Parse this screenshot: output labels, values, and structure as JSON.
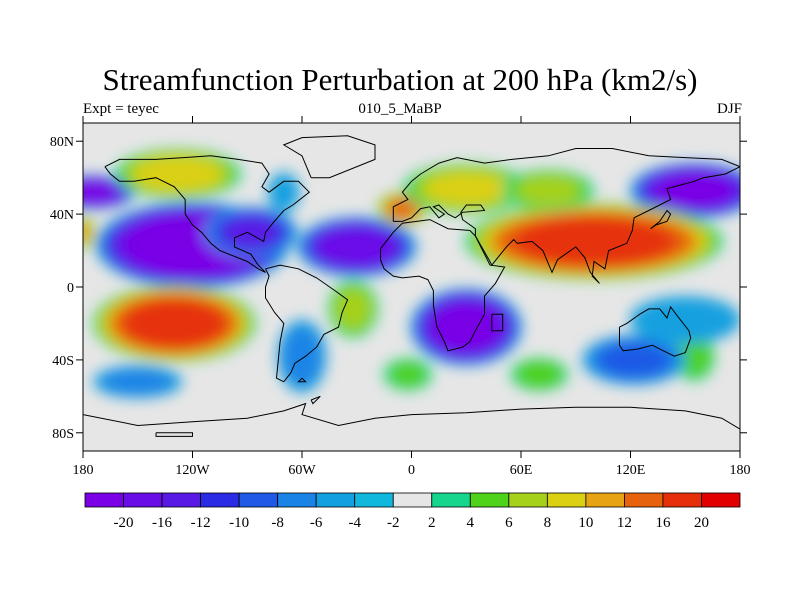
{
  "title": "Streamfunction Perturbation at 200 hPa (km2/s)",
  "subtitle_left": "Expt = teyec",
  "subtitle_center": "010_5_MaBP",
  "subtitle_right": "DJF",
  "lat_ticks": [
    {
      "label": "80N",
      "lat": 80
    },
    {
      "label": "40N",
      "lat": 40
    },
    {
      "label": "0",
      "lat": 0
    },
    {
      "label": "40S",
      "lat": -40
    },
    {
      "label": "80S",
      "lat": -80
    }
  ],
  "lon_ticks": [
    {
      "label": "180",
      "lon": -180
    },
    {
      "label": "120W",
      "lon": -120
    },
    {
      "label": "60W",
      "lon": -60
    },
    {
      "label": "0",
      "lon": 0
    },
    {
      "label": "60E",
      "lon": 60
    },
    {
      "label": "120E",
      "lon": 120
    },
    {
      "label": "180",
      "lon": 180
    }
  ],
  "colorbar": {
    "colors": [
      "#7a00e6",
      "#6a0ee8",
      "#5a1ae6",
      "#2b2be6",
      "#1e5ae6",
      "#1a84e6",
      "#13a0e0",
      "#11b8dd",
      "#e6e6e6",
      "#15d68c",
      "#4ed21a",
      "#a6d11a",
      "#dbd012",
      "#e6a414",
      "#e6620c",
      "#e6300a",
      "#e30000"
    ],
    "labels": [
      "-20",
      "-16",
      "-12",
      "-10",
      "-8",
      "-6",
      "-4",
      "-2",
      "2",
      "4",
      "6",
      "8",
      "10",
      "12",
      "16",
      "20"
    ]
  },
  "map_data": {
    "lon_range": [
      -180,
      180
    ],
    "lat_range": [
      -90,
      90
    ],
    "field_units": "km2/s",
    "features": [
      {
        "lon": -175,
        "lat": 52,
        "value": -16,
        "rx": 20,
        "ry": 8
      },
      {
        "lon": -120,
        "lat": 23,
        "value": -20,
        "rx": 45,
        "ry": 20
      },
      {
        "lon": -88,
        "lat": 30,
        "value": -10,
        "rx": 22,
        "ry": 12
      },
      {
        "lon": -30,
        "lat": 22,
        "value": -14,
        "rx": 28,
        "ry": 14
      },
      {
        "lon": 30,
        "lat": -22,
        "value": -16,
        "rx": 26,
        "ry": 18
      },
      {
        "lon": 155,
        "lat": 53,
        "value": -16,
        "rx": 30,
        "ry": 13
      },
      {
        "lon": -128,
        "lat": 62,
        "value": 9,
        "rx": 30,
        "ry": 12
      },
      {
        "lon": -180,
        "lat": 30,
        "value": 10,
        "rx": 6,
        "ry": 8
      },
      {
        "lon": -130,
        "lat": -20,
        "value": 18,
        "rx": 38,
        "ry": 18
      },
      {
        "lon": -32,
        "lat": -12,
        "value": 6,
        "rx": 12,
        "ry": 14
      },
      {
        "lon": -5,
        "lat": 43,
        "value": 12,
        "rx": 12,
        "ry": 8
      },
      {
        "lon": 30,
        "lat": 54,
        "value": 8,
        "rx": 30,
        "ry": 12
      },
      {
        "lon": 100,
        "lat": 25,
        "value": 18,
        "rx": 60,
        "ry": 18
      },
      {
        "lon": 75,
        "lat": 53,
        "value": 6,
        "rx": 22,
        "ry": 10
      },
      {
        "lon": 70,
        "lat": -48,
        "value": 5,
        "rx": 14,
        "ry": 8
      },
      {
        "lon": -2,
        "lat": -48,
        "value": 4,
        "rx": 12,
        "ry": 8
      },
      {
        "lon": 155,
        "lat": -38,
        "value": 5,
        "rx": 10,
        "ry": 12
      },
      {
        "lon": -60,
        "lat": -38,
        "value": -4,
        "rx": 12,
        "ry": 18
      },
      {
        "lon": -150,
        "lat": -52,
        "value": -4,
        "rx": 22,
        "ry": 8
      },
      {
        "lon": 122,
        "lat": -40,
        "value": -6,
        "rx": 25,
        "ry": 12
      },
      {
        "lon": -70,
        "lat": 52,
        "value": -3,
        "rx": 8,
        "ry": 10
      },
      {
        "lon": 150,
        "lat": -18,
        "value": -3,
        "rx": 28,
        "ry": 12
      }
    ],
    "coastlines": [
      [
        [
          -168,
          66
        ],
        [
          -160,
          70
        ],
        [
          -140,
          70
        ],
        [
          -125,
          71
        ],
        [
          -110,
          72
        ],
        [
          -95,
          70
        ],
        [
          -82,
          68
        ],
        [
          -78,
          62
        ],
        [
          -82,
          55
        ],
        [
          -78,
          52
        ],
        [
          -70,
          58
        ],
        [
          -62,
          58
        ],
        [
          -56,
          52
        ],
        [
          -65,
          45
        ],
        [
          -70,
          42
        ],
        [
          -76,
          35
        ],
        [
          -80,
          30
        ],
        [
          -81,
          25
        ],
        [
          -90,
          30
        ],
        [
          -97,
          27
        ],
        [
          -97,
          22
        ],
        [
          -88,
          18
        ],
        [
          -84,
          12
        ],
        [
          -80,
          8
        ],
        [
          -84,
          10
        ],
        [
          -90,
          14
        ],
        [
          -105,
          20
        ],
        [
          -110,
          24
        ],
        [
          -115,
          30
        ],
        [
          -120,
          34
        ],
        [
          -124,
          40
        ],
        [
          -124,
          48
        ],
        [
          -130,
          55
        ],
        [
          -140,
          60
        ],
        [
          -152,
          58
        ],
        [
          -160,
          58
        ],
        [
          -165,
          62
        ],
        [
          -168,
          66
        ]
      ],
      [
        [
          -80,
          10
        ],
        [
          -72,
          12
        ],
        [
          -62,
          10
        ],
        [
          -52,
          5
        ],
        [
          -42,
          -2
        ],
        [
          -35,
          -7
        ],
        [
          -38,
          -14
        ],
        [
          -40,
          -22
        ],
        [
          -48,
          -26
        ],
        [
          -52,
          -33
        ],
        [
          -58,
          -38
        ],
        [
          -64,
          -42
        ],
        [
          -66,
          -47
        ],
        [
          -70,
          -52
        ],
        [
          -74,
          -50
        ],
        [
          -73,
          -40
        ],
        [
          -72,
          -30
        ],
        [
          -70,
          -20
        ],
        [
          -75,
          -14
        ],
        [
          -80,
          -6
        ],
        [
          -80,
          0
        ],
        [
          -78,
          6
        ],
        [
          -80,
          10
        ]
      ],
      [
        [
          -55,
          60
        ],
        [
          -45,
          60
        ],
        [
          -20,
          70
        ],
        [
          -20,
          78
        ],
        [
          -35,
          83
        ],
        [
          -60,
          82
        ],
        [
          -70,
          78
        ],
        [
          -60,
          72
        ],
        [
          -55,
          60
        ]
      ],
      [
        [
          -10,
          36
        ],
        [
          -10,
          44
        ],
        [
          -2,
          48
        ],
        [
          -5,
          52
        ],
        [
          0,
          58
        ],
        [
          5,
          62
        ],
        [
          15,
          68
        ],
        [
          25,
          71
        ],
        [
          40,
          68
        ],
        [
          55,
          70
        ],
        [
          75,
          72
        ],
        [
          90,
          76
        ],
        [
          110,
          76
        ],
        [
          130,
          72
        ],
        [
          150,
          71
        ],
        [
          170,
          70
        ],
        [
          180,
          66
        ],
        [
          172,
          62
        ],
        [
          160,
          60
        ],
        [
          155,
          58
        ],
        [
          140,
          54
        ],
        [
          142,
          48
        ],
        [
          130,
          42
        ],
        [
          122,
          38
        ],
        [
          121,
          31
        ],
        [
          118,
          24
        ],
        [
          108,
          20
        ],
        [
          106,
          10
        ],
        [
          100,
          14
        ],
        [
          99,
          6
        ],
        [
          103,
          2
        ],
        [
          98,
          8
        ],
        [
          95,
          16
        ],
        [
          90,
          22
        ],
        [
          80,
          15
        ],
        [
          77,
          8
        ],
        [
          72,
          20
        ],
        [
          66,
          25
        ],
        [
          58,
          24
        ],
        [
          56,
          26
        ],
        [
          52,
          22
        ],
        [
          44,
          12
        ],
        [
          43,
          14
        ],
        [
          35,
          28
        ],
        [
          35,
          32
        ],
        [
          28,
          37
        ],
        [
          27,
          41
        ],
        [
          30,
          45
        ],
        [
          38,
          45
        ],
        [
          40,
          42
        ],
        [
          28,
          41
        ],
        [
          24,
          38
        ],
        [
          20,
          40
        ],
        [
          15,
          45
        ],
        [
          12,
          44
        ],
        [
          18,
          40
        ],
        [
          15,
          38
        ],
        [
          10,
          44
        ],
        [
          5,
          43
        ],
        [
          0,
          38
        ],
        [
          -5,
          36
        ],
        [
          -10,
          36
        ]
      ],
      [
        [
          -17,
          15
        ],
        [
          -17,
          21
        ],
        [
          -10,
          30
        ],
        [
          -5,
          35
        ],
        [
          10,
          37
        ],
        [
          20,
          32
        ],
        [
          32,
          31
        ],
        [
          35,
          28
        ],
        [
          43,
          12
        ],
        [
          51,
          11
        ],
        [
          46,
          2
        ],
        [
          40,
          -5
        ],
        [
          40,
          -15
        ],
        [
          35,
          -24
        ],
        [
          32,
          -30
        ],
        [
          28,
          -33
        ],
        [
          20,
          -35
        ],
        [
          18,
          -30
        ],
        [
          14,
          -22
        ],
        [
          12,
          -10
        ],
        [
          12,
          -2
        ],
        [
          9,
          4
        ],
        [
          4,
          6
        ],
        [
          -5,
          5
        ],
        [
          -10,
          6
        ],
        [
          -15,
          10
        ],
        [
          -17,
          15
        ]
      ],
      [
        [
          114,
          -22
        ],
        [
          114,
          -32
        ],
        [
          116,
          -35
        ],
        [
          124,
          -34
        ],
        [
          132,
          -32
        ],
        [
          138,
          -35
        ],
        [
          144,
          -38
        ],
        [
          150,
          -36
        ],
        [
          153,
          -28
        ],
        [
          152,
          -24
        ],
        [
          145,
          -15
        ],
        [
          142,
          -11
        ],
        [
          140,
          -17
        ],
        [
          136,
          -12
        ],
        [
          130,
          -12
        ],
        [
          125,
          -15
        ],
        [
          118,
          -20
        ],
        [
          114,
          -22
        ]
      ],
      [
        [
          -180,
          -70
        ],
        [
          -150,
          -76
        ],
        [
          -120,
          -74
        ],
        [
          -90,
          -72
        ],
        [
          -70,
          -68
        ],
        [
          -58,
          -64
        ],
        [
          -60,
          -70
        ],
        [
          -40,
          -76
        ],
        [
          -20,
          -72
        ],
        [
          0,
          -70
        ],
        [
          30,
          -69
        ],
        [
          60,
          -67
        ],
        [
          90,
          -66
        ],
        [
          120,
          -66
        ],
        [
          150,
          -68
        ],
        [
          170,
          -72
        ],
        [
          180,
          -78
        ]
      ],
      [
        [
          -140,
          -80
        ],
        [
          -120,
          -80
        ],
        [
          -120,
          -82
        ],
        [
          -140,
          -82
        ],
        [
          -140,
          -80
        ]
      ],
      [
        [
          44,
          -15
        ],
        [
          50,
          -15
        ],
        [
          50,
          -24
        ],
        [
          44,
          -24
        ],
        [
          44,
          -15
        ]
      ],
      [
        [
          131,
          32
        ],
        [
          134,
          34
        ],
        [
          140,
          36
        ],
        [
          142,
          40
        ],
        [
          140,
          42
        ],
        [
          136,
          36
        ],
        [
          131,
          32
        ]
      ],
      [
        [
          -60,
          -50
        ],
        [
          -58,
          -52
        ],
        [
          -62,
          -52
        ],
        [
          -60,
          -50
        ]
      ],
      [
        [
          -55,
          -62
        ],
        [
          -50,
          -60
        ],
        [
          -54,
          -64
        ],
        [
          -55,
          -62
        ]
      ]
    ]
  }
}
